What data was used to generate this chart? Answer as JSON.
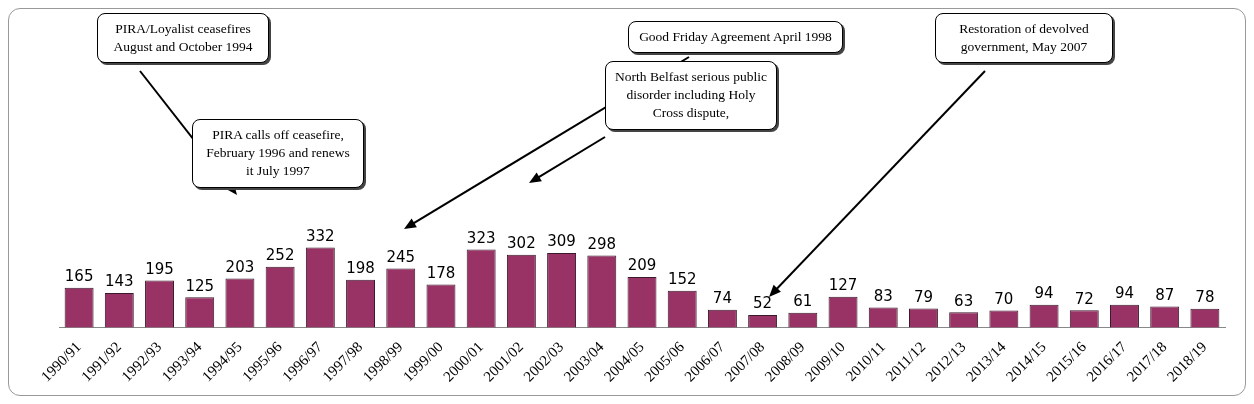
{
  "chart_data": {
    "type": "bar",
    "categories": [
      "1990/91",
      "1991/92",
      "1992/93",
      "1993/94",
      "1994/95",
      "1995/96",
      "1996/97",
      "1997/98",
      "1998/99",
      "1999/00",
      "2000/01",
      "2001/02",
      "2002/03",
      "2003/04",
      "2004/05",
      "2005/06",
      "2006/07",
      "2007/08",
      "2008/09",
      "2009/10",
      "2010/11",
      "2011/12",
      "2012/13",
      "2013/14",
      "2014/15",
      "2015/16",
      "2016/17",
      "2017/18",
      "2018/19"
    ],
    "values": [
      165,
      143,
      195,
      125,
      203,
      252,
      332,
      198,
      245,
      178,
      323,
      302,
      309,
      298,
      209,
      152,
      74,
      52,
      61,
      127,
      83,
      79,
      63,
      70,
      94,
      72,
      94,
      87,
      78
    ],
    "color": "#993366",
    "data_labels": true,
    "grid": false,
    "legend": false,
    "tick_labels": "x",
    "annotations": [
      "PIRA/Loyalist ceasefires August and October 1994",
      "PIRA calls off ceasefire, February 1996 and renews it July 1997",
      "Good Friday Agreement April 1998",
      "North Belfast serious public disorder including Holy Cross dispute,",
      "Restoration of devolved government, May 2007"
    ]
  }
}
